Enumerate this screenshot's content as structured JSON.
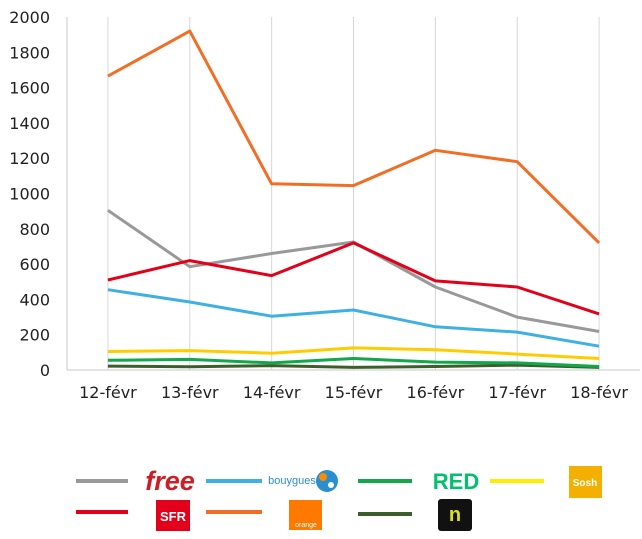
{
  "chart_data": {
    "type": "line",
    "categories": [
      "12-févr",
      "13-févr",
      "14-févr",
      "15-févr",
      "16-févr",
      "17-févr",
      "18-févr"
    ],
    "ylim": [
      0,
      2000
    ],
    "yticks": [
      0,
      200,
      400,
      600,
      800,
      1000,
      1200,
      1400,
      1600,
      1800,
      2000
    ],
    "grid": "vertical",
    "legend_position": "bottom",
    "series": [
      {
        "name": "Free",
        "color": "#999999",
        "values": [
          905,
          585,
          660,
          725,
          470,
          300,
          218
        ]
      },
      {
        "name": "Bouygues",
        "color": "#3fb0e3",
        "values": [
          455,
          385,
          305,
          340,
          245,
          215,
          135
        ]
      },
      {
        "name": "RED",
        "color": "#10a84a",
        "values": [
          55,
          60,
          40,
          65,
          45,
          40,
          20
        ]
      },
      {
        "name": "Sosh",
        "color": "#ffcc00",
        "values": [
          105,
          110,
          95,
          125,
          115,
          90,
          65
        ]
      },
      {
        "name": "SFR",
        "color": "#e2001a",
        "values": [
          510,
          620,
          535,
          720,
          505,
          470,
          318
        ]
      },
      {
        "name": "Orange",
        "color": "#f26e24",
        "values": [
          1665,
          1920,
          1055,
          1045,
          1245,
          1180,
          720
        ]
      },
      {
        "name": "NRJ Mobile",
        "color": "#3a5f2a",
        "values": [
          22,
          18,
          25,
          15,
          20,
          28,
          15
        ]
      }
    ]
  },
  "legend": {
    "free_text": "free",
    "bouygues_text": "bouygues",
    "red_text": "RED",
    "sosh_text": "Sosh",
    "sfr_text": "SFR",
    "orange_text": "orange",
    "nrj_text": "n"
  }
}
